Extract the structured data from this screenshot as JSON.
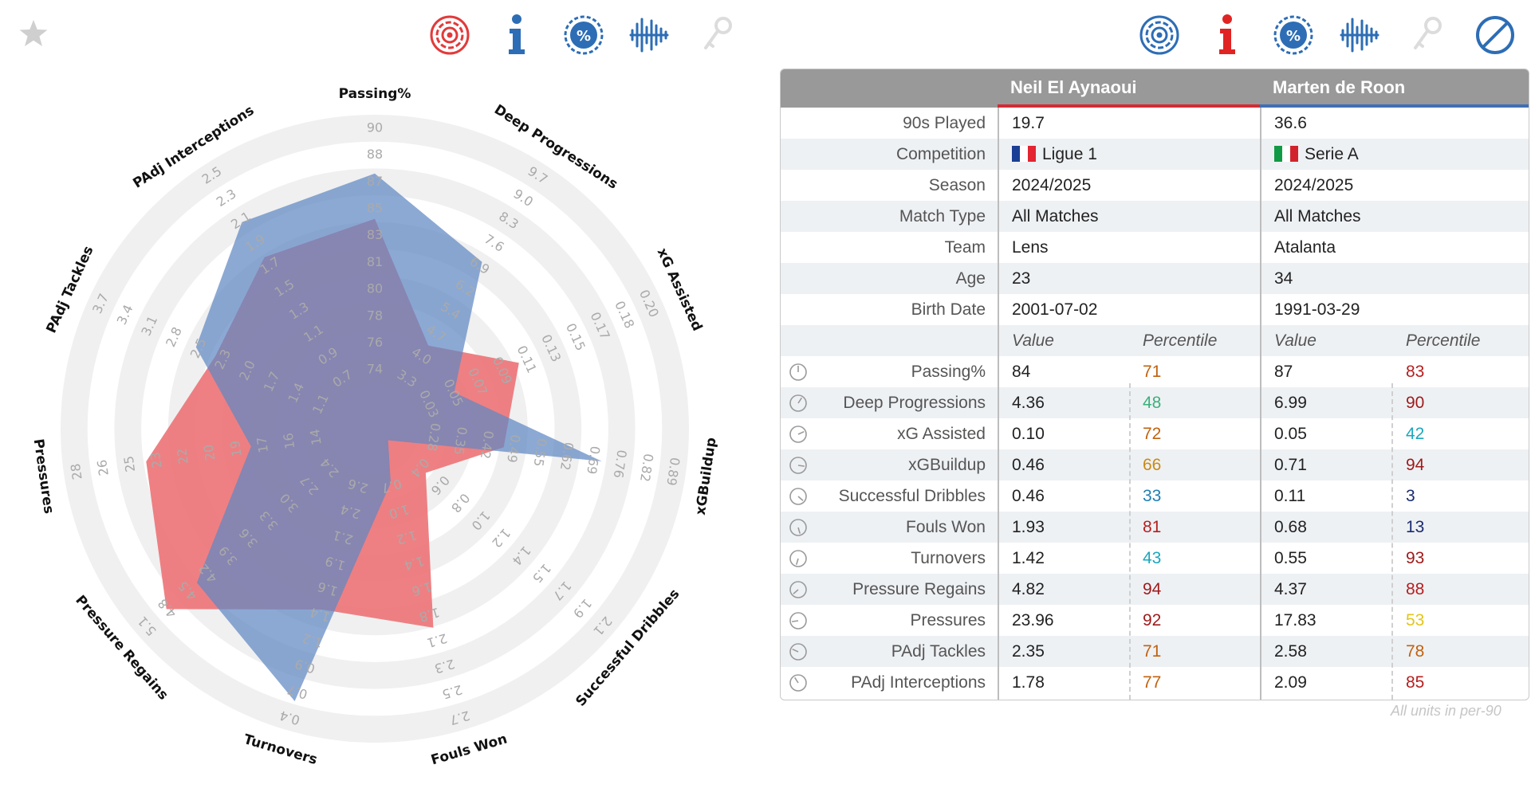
{
  "left_toolbar": {
    "star": "star-icon",
    "icons": [
      "radar-target-icon",
      "info-icon",
      "percentile-icon",
      "distribution-icon",
      "key-icon"
    ]
  },
  "right_toolbar": {
    "icons": [
      "radar-target-icon",
      "info-icon",
      "percentile-icon",
      "distribution-icon",
      "key-icon",
      "clear-icon"
    ]
  },
  "colors": {
    "player1": "#d42b35",
    "player2": "#3f70b5",
    "radar_fill_1": "#ec6e72",
    "radar_fill_2": "#5f88c4"
  },
  "chart_data": {
    "type": "radar",
    "axes": [
      {
        "label": "Passing%",
        "ticks": [
          "74",
          "76",
          "78",
          "80",
          "81",
          "83",
          "85",
          "87",
          "88",
          "90"
        ]
      },
      {
        "label": "Deep Progressions",
        "ticks": [
          "3.3",
          "4.0",
          "4.7",
          "5.4",
          "6.2",
          "6.9",
          "7.6",
          "8.3",
          "9.0",
          "9.7"
        ]
      },
      {
        "label": "xG Assisted",
        "ticks": [
          "0.03",
          "0.05",
          "0.07",
          "0.09",
          "0.11",
          "0.13",
          "0.15",
          "0.17",
          "0.18",
          "0.20"
        ]
      },
      {
        "label": "xGBuildup",
        "ticks": [
          "0.28",
          "0.35",
          "0.42",
          "0.49",
          "0.55",
          "0.62",
          "0.69",
          "0.76",
          "0.82",
          "0.89"
        ]
      },
      {
        "label": "Successful Dribbles",
        "ticks": [
          "0.4",
          "0.6",
          "0.8",
          "1.0",
          "1.2",
          "1.4",
          "1.5",
          "1.7",
          "1.9",
          "2.1"
        ]
      },
      {
        "label": "Fouls Won",
        "ticks": [
          "0.7",
          "1.0",
          "1.2",
          "1.4",
          "1.6",
          "1.8",
          "2.1",
          "2.3",
          "2.5",
          "2.7"
        ]
      },
      {
        "label": "Turnovers",
        "ticks": [
          "2.6",
          "2.4",
          "2.1",
          "1.9",
          "1.6",
          "1.4",
          "1.2",
          "0.9",
          "0.7",
          "0.4"
        ]
      },
      {
        "label": "Pressure Regains",
        "ticks": [
          "2.4",
          "2.7",
          "3.0",
          "3.3",
          "3.6",
          "3.9",
          "4.2",
          "4.5",
          "4.8",
          "5.1"
        ]
      },
      {
        "label": "Pressures",
        "ticks": [
          "14",
          "16",
          "17",
          "19",
          "20",
          "22",
          "23",
          "25",
          "26",
          "28"
        ]
      },
      {
        "label": "PAdj Tackles",
        "ticks": [
          "1.1",
          "1.4",
          "1.7",
          "2.0",
          "2.3",
          "2.5",
          "2.8",
          "3.1",
          "3.4",
          "3.7"
        ]
      },
      {
        "label": "PAdj Interceptions",
        "ticks": [
          "0.7",
          "0.9",
          "1.1",
          "1.3",
          "1.5",
          "1.7",
          "1.9",
          "2.1",
          "2.3",
          "2.5"
        ]
      }
    ],
    "series": [
      {
        "name": "Neil El Aynaoui",
        "values": [
          84,
          4.36,
          0.1,
          0.46,
          0.46,
          1.93,
          1.42,
          4.82,
          23.96,
          2.35,
          1.78
        ]
      },
      {
        "name": "Marten de Roon",
        "values": [
          87,
          6.99,
          0.05,
          0.71,
          0.11,
          0.68,
          0.55,
          4.37,
          17.83,
          2.58,
          2.09
        ]
      }
    ],
    "radial_levels": [
      0.32,
      0.42,
      0.53,
      0.63,
      0.74,
      0.84,
      0.95,
      1.05,
      1.16,
      1.26
    ]
  },
  "table": {
    "players": [
      "Neil El Aynaoui",
      "Marten de Roon"
    ],
    "info_rows": [
      {
        "label": "90s Played",
        "p1": "19.7",
        "p2": "36.6"
      },
      {
        "label": "Competition",
        "p1": "Ligue 1",
        "p2": "Serie A",
        "p1_flag": [
          "#1b3f95",
          "#ffffff",
          "#e32431"
        ],
        "p2_flag": [
          "#119a45",
          "#ffffff",
          "#d2232c"
        ]
      },
      {
        "label": "Season",
        "p1": "2024/2025",
        "p2": "2024/2025"
      },
      {
        "label": "Match Type",
        "p1": "All Matches",
        "p2": "All Matches"
      },
      {
        "label": "Team",
        "p1": "Lens",
        "p2": "Atalanta"
      },
      {
        "label": "Age",
        "p1": "23",
        "p2": "34"
      },
      {
        "label": "Birth Date",
        "p1": "2001-07-02",
        "p2": "1991-03-29"
      }
    ],
    "subheader": {
      "value": "Value",
      "percentile": "Percentile"
    },
    "stat_rows": [
      {
        "label": "Passing%",
        "v1": "84",
        "p1": "71",
        "c1": "#c0620e",
        "v2": "87",
        "p2": "83",
        "c2": "#b51f1f"
      },
      {
        "label": "Deep Progressions",
        "v1": "4.36",
        "p1": "48",
        "c1": "#3bb07a",
        "v2": "6.99",
        "p2": "90",
        "c2": "#9e1a1a"
      },
      {
        "label": "xG Assisted",
        "v1": "0.10",
        "p1": "72",
        "c1": "#c0620e",
        "v2": "0.05",
        "p2": "42",
        "c2": "#1ba7bd"
      },
      {
        "label": "xGBuildup",
        "v1": "0.46",
        "p1": "66",
        "c1": "#c98a14",
        "v2": "0.71",
        "p2": "94",
        "c2": "#9e1a1a"
      },
      {
        "label": "Successful Dribbles",
        "v1": "0.46",
        "p1": "33",
        "c1": "#1f7fb3",
        "v2": "0.11",
        "p2": "3",
        "c2": "#1a2b6e"
      },
      {
        "label": "Fouls Won",
        "v1": "1.93",
        "p1": "81",
        "c1": "#b51f1f",
        "v2": "0.68",
        "p2": "13",
        "c2": "#1a2b6e"
      },
      {
        "label": "Turnovers",
        "v1": "1.42",
        "p1": "43",
        "c1": "#1ba7bd",
        "v2": "0.55",
        "p2": "93",
        "c2": "#9e1a1a"
      },
      {
        "label": "Pressure Regains",
        "v1": "4.82",
        "p1": "94",
        "c1": "#9e1a1a",
        "v2": "4.37",
        "p2": "88",
        "c2": "#b51f1f"
      },
      {
        "label": "Pressures",
        "v1": "23.96",
        "p1": "92",
        "c1": "#9e1a1a",
        "v2": "17.83",
        "p2": "53",
        "c2": "#e3c61a"
      },
      {
        "label": "PAdj Tackles",
        "v1": "2.35",
        "p1": "71",
        "c1": "#c0620e",
        "v2": "2.58",
        "p2": "78",
        "c2": "#c0620e"
      },
      {
        "label": "PAdj Interceptions",
        "v1": "1.78",
        "p1": "77",
        "c1": "#c0620e",
        "v2": "2.09",
        "p2": "85",
        "c2": "#b51f1f"
      }
    ],
    "units_note": "All units in per-90"
  }
}
